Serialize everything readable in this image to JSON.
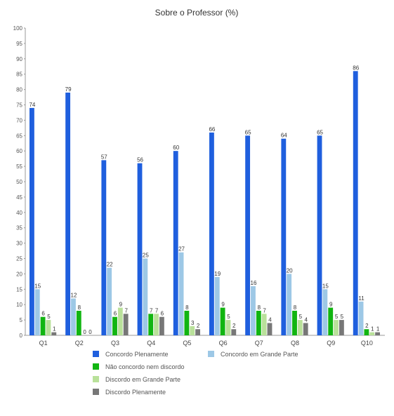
{
  "chart_data": {
    "type": "bar",
    "title": "Sobre o Professor (%)",
    "xlabel": "",
    "ylabel": "",
    "ylim": [
      0,
      100
    ],
    "ytick_step": 5,
    "grid": false,
    "legend_position": "bottom",
    "categories": [
      "Q1",
      "Q2",
      "Q3",
      "Q4",
      "Q5",
      "Q6",
      "Q7",
      "Q8",
      "Q9",
      "Q10"
    ],
    "series": [
      {
        "name": "Concordo Plenamente",
        "color": "#1f5fde",
        "values": [
          74,
          79,
          57,
          56,
          60,
          66,
          65,
          64,
          65,
          86
        ]
      },
      {
        "name": "Concordo em Grande Parte",
        "color": "#9dc8e6",
        "values": [
          15,
          12,
          22,
          25,
          27,
          19,
          16,
          20,
          15,
          11
        ]
      },
      {
        "name": "Não concordo nem discordo",
        "color": "#11b511",
        "values": [
          6,
          8,
          6,
          7,
          8,
          9,
          8,
          8,
          9,
          2
        ]
      },
      {
        "name": "Discordo em Grande Parte",
        "color": "#b9e19a",
        "values": [
          5,
          0,
          9,
          7,
          3,
          5,
          7,
          5,
          5,
          1
        ]
      },
      {
        "name": "Discordo Plenamente",
        "color": "#777777",
        "values": [
          1,
          0,
          7,
          6,
          2,
          2,
          4,
          4,
          5,
          1
        ]
      }
    ]
  }
}
